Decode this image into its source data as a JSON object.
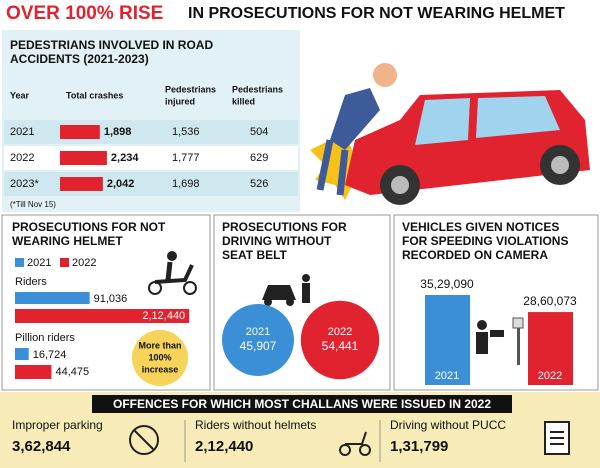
{
  "header": {
    "highlight": "OVER 100% RISE",
    "rest": "IN PROSECUTIONS FOR NOT WEARING HELMET"
  },
  "accidents": {
    "title_lines": [
      "PEDESTRIANS INVOLVED IN ROAD",
      "ACCIDENTS (2021-2023)"
    ],
    "columns": [
      [
        "Year"
      ],
      [
        "Total crashes"
      ],
      [
        "Pedestrians",
        "injured"
      ],
      [
        "Pedestrians",
        "killed"
      ]
    ],
    "rows": [
      {
        "year": "2021",
        "crashes": {
          "value": 1898,
          "label": "1,898"
        },
        "injured": "1,536",
        "killed": "504"
      },
      {
        "year": "2022",
        "crashes": {
          "value": 2234,
          "label": "2,234"
        },
        "injured": "1,777",
        "killed": "629"
      },
      {
        "year": "2023*",
        "crashes": {
          "value": 2042,
          "label": "2,042"
        },
        "injured": "1,698",
        "killed": "526"
      }
    ],
    "note": "(*Till Nov 15)"
  },
  "helmet": {
    "title_lines": [
      "PROSECUTIONS FOR NOT",
      "WEARING HELMET"
    ],
    "series": [
      {
        "name": "2021",
        "color": "#3a8fd6"
      },
      {
        "name": "2022",
        "color": "#e0232e"
      }
    ],
    "groups": [
      {
        "name": "Riders",
        "values": [
          91036,
          212440
        ],
        "value_labels": [
          "91,036",
          "2,12,440"
        ]
      },
      {
        "name": "Pillion riders",
        "values": [
          16724,
          44475
        ],
        "value_labels": [
          "16,724",
          "44,475"
        ]
      }
    ],
    "badge_lines": [
      "More than",
      "100%",
      "increase"
    ]
  },
  "seatbelt": {
    "title_lines": [
      "PROSECUTIONS FOR",
      "DRIVING WITHOUT",
      "SEAT BELT"
    ],
    "items": [
      {
        "year": "2021",
        "value": 45907,
        "label": "45,907",
        "color": "#3a8fd6"
      },
      {
        "year": "2022",
        "value": 54441,
        "label": "54,441",
        "color": "#e0232e"
      }
    ]
  },
  "speeding": {
    "title_lines": [
      "VEHICLES GIVEN NOTICES",
      "FOR SPEEDING VIOLATIONS",
      "RECORDED ON CAMERA"
    ],
    "items": [
      {
        "year": "2021",
        "value": 3529090,
        "label": "35,29,090",
        "color": "#3a8fd6"
      },
      {
        "year": "2022",
        "value": 2860073,
        "label": "28,60,073",
        "color": "#e0232e"
      }
    ]
  },
  "offences": {
    "title": "OFFENCES FOR WHICH MOST CHALLANS WERE ISSUED IN 2022",
    "items": [
      {
        "label": "Improper parking",
        "value": "3,62,844"
      },
      {
        "label": "Riders without helmets",
        "value": "2,12,440"
      },
      {
        "label": "Driving without PUCC",
        "value": "1,31,799"
      }
    ]
  }
}
